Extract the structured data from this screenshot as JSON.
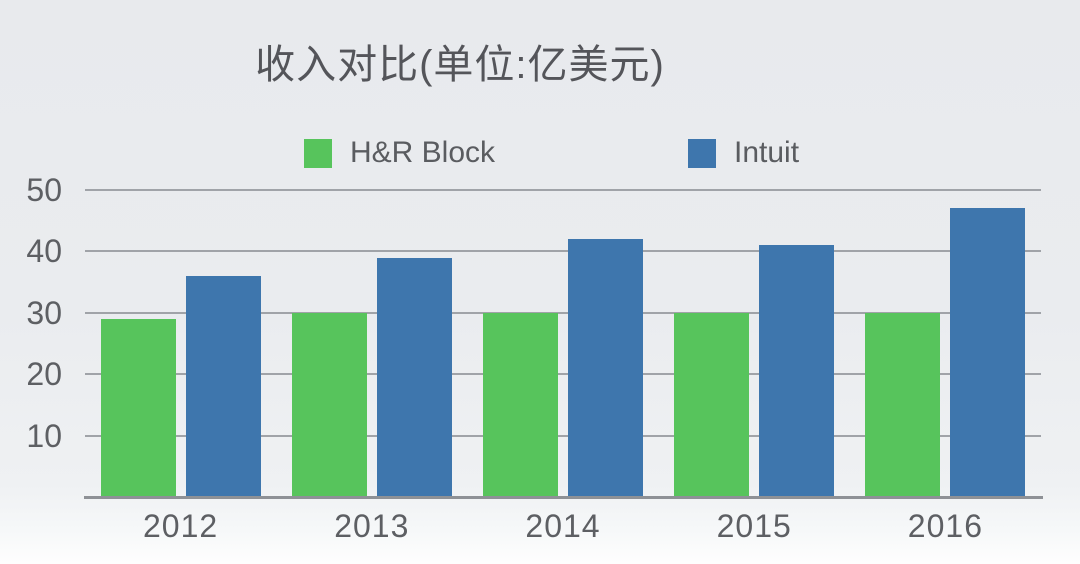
{
  "chart_data": {
    "type": "bar",
    "title": "收入对比(单位:亿美元)",
    "categories": [
      "2012",
      "2013",
      "2014",
      "2015",
      "2016"
    ],
    "series": [
      {
        "name": "H&R Block",
        "color": "#57c45c",
        "values": [
          29,
          30,
          30,
          30,
          30
        ]
      },
      {
        "name": "Intuit",
        "color": "#3e76ad",
        "values": [
          36,
          39,
          42,
          41,
          47
        ]
      }
    ],
    "xlabel": "",
    "ylabel": "",
    "ylim": [
      0,
      50
    ],
    "yticks": [
      10,
      20,
      30,
      40,
      50
    ],
    "grid": true,
    "legend_position": "top",
    "axis_color": "#8e9196",
    "gridline_color": "#a0a3a8",
    "text_color": "#5d5f63"
  }
}
